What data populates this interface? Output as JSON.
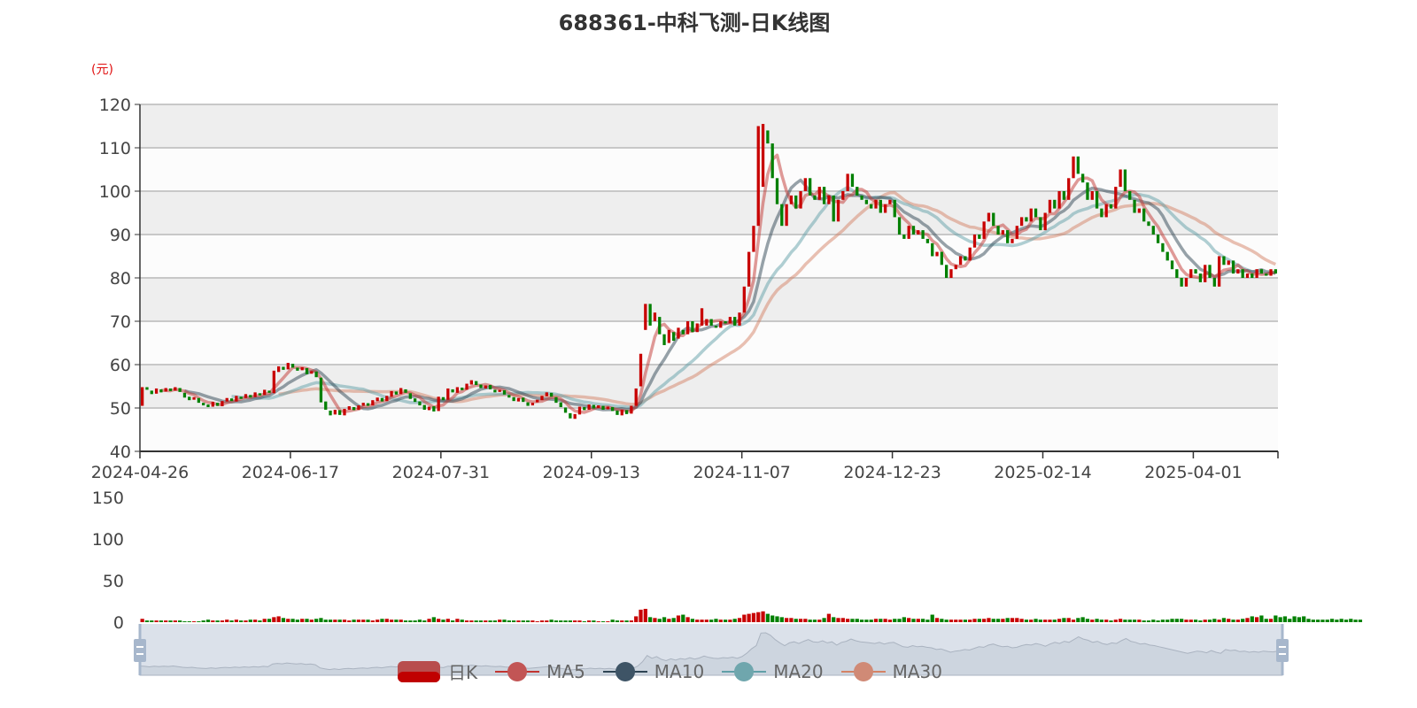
{
  "chart_data": {
    "type": "candlestick",
    "title": "688361-中科飞测-日K线图",
    "y_unit_label": "(元)",
    "ylim": [
      40,
      120
    ],
    "y_ticks": [
      40,
      50,
      60,
      70,
      80,
      90,
      100,
      110,
      120
    ],
    "volume_ylim": [
      0,
      150
    ],
    "volume_ticks": [
      0,
      50,
      100,
      150
    ],
    "x_tick_labels": [
      "2024-04-26",
      "2024-06-17",
      "2024-07-31",
      "2024-09-13",
      "2024-11-07",
      "2024-12-23",
      "2025-02-14",
      "2025-04-01"
    ],
    "x_tick_interval_days": 32,
    "grid": true,
    "legend": [
      "日K",
      "MA5",
      "MA10",
      "MA20",
      "MA30"
    ],
    "legend_placement": "bottom",
    "colors": {
      "up": "#c80000",
      "down": "#008000",
      "MA5": "#c23531",
      "MA10": "#2f4554",
      "MA20": "#61a0a8",
      "MA30": "#d48265",
      "band": "#eeeeee",
      "slider": "#dbe1ea"
    },
    "ohlc_note_fields": [
      "open",
      "close"
    ],
    "candles": [
      [
        50.5,
        54.8
      ],
      [
        54.8,
        54.2
      ],
      [
        54,
        53.2
      ],
      [
        53.3,
        54.5
      ],
      [
        54.3,
        53.6
      ],
      [
        53.8,
        54.6
      ],
      [
        54.5,
        53.9
      ],
      [
        54,
        54.8
      ],
      [
        54.6,
        53.7
      ],
      [
        53.5,
        52.4
      ],
      [
        52.6,
        51.8
      ],
      [
        51.9,
        52.5
      ],
      [
        52.3,
        51.2
      ],
      [
        51.2,
        50.6
      ],
      [
        50.8,
        50.2
      ],
      [
        50.3,
        51.4
      ],
      [
        51.2,
        50.5
      ],
      [
        50.4,
        51.6
      ],
      [
        51.5,
        52.3
      ],
      [
        52.2,
        51.6
      ],
      [
        51.5,
        52.8
      ],
      [
        52.6,
        52.1
      ],
      [
        52.3,
        53.2
      ],
      [
        53,
        52.4
      ],
      [
        52.5,
        53.6
      ],
      [
        53.4,
        52.9
      ],
      [
        53,
        54.2
      ],
      [
        54,
        53.5
      ],
      [
        53.4,
        58.6
      ],
      [
        58.3,
        59.6
      ],
      [
        59.5,
        58.8
      ],
      [
        58.9,
        60.4
      ],
      [
        60.2,
        59.3
      ],
      [
        59.3,
        58.6
      ],
      [
        58.7,
        59.4
      ],
      [
        59.2,
        57.8
      ],
      [
        57.9,
        58.5
      ],
      [
        58.4,
        57.1
      ],
      [
        57,
        51.3
      ],
      [
        51.5,
        49.6
      ],
      [
        49.4,
        48.3
      ],
      [
        48.5,
        49.6
      ],
      [
        49.5,
        48.4
      ],
      [
        48.3,
        49.8
      ],
      [
        49.6,
        50.4
      ],
      [
        50.2,
        49.5
      ],
      [
        49.6,
        50.6
      ],
      [
        50.5,
        51.2
      ],
      [
        51.1,
        50.5
      ],
      [
        50.6,
        51.8
      ],
      [
        51.6,
        52.4
      ],
      [
        52.3,
        51.5
      ],
      [
        51.6,
        52.8
      ],
      [
        52.6,
        53.9
      ],
      [
        53.8,
        53.1
      ],
      [
        53.2,
        54.6
      ],
      [
        54.3,
        53.5
      ],
      [
        53.4,
        52.1
      ],
      [
        52.2,
        51.4
      ],
      [
        51.5,
        50.6
      ],
      [
        50.7,
        49.6
      ],
      [
        49.5,
        50.3
      ],
      [
        50.4,
        49.2
      ],
      [
        49.3,
        52.6
      ],
      [
        52.5,
        51.8
      ],
      [
        51.9,
        54.5
      ],
      [
        54.3,
        53.6
      ],
      [
        53.5,
        54.8
      ],
      [
        54.7,
        54.1
      ],
      [
        54.2,
        55.6
      ],
      [
        55.4,
        56.4
      ],
      [
        56.2,
        55.3
      ],
      [
        55.4,
        54.6
      ],
      [
        54.5,
        55.2
      ],
      [
        55.3,
        54.3
      ],
      [
        54.2,
        53.6
      ],
      [
        53.7,
        54.2
      ],
      [
        54.1,
        53.1
      ],
      [
        53,
        52.4
      ],
      [
        52.5,
        51.6
      ],
      [
        51.5,
        52.3
      ],
      [
        52.4,
        51.4
      ],
      [
        51.3,
        50.5
      ],
      [
        50.6,
        51.2
      ],
      [
        51.3,
        51.9
      ],
      [
        51.8,
        52.8
      ],
      [
        52.7,
        53.6
      ],
      [
        53.5,
        52.6
      ],
      [
        52.5,
        51.2
      ],
      [
        51.3,
        50.2
      ],
      [
        50.1,
        48.9
      ],
      [
        48.8,
        47.6
      ],
      [
        47.5,
        48.6
      ],
      [
        48.5,
        50.3
      ],
      [
        50.2,
        49.5
      ],
      [
        49.6,
        50.8
      ],
      [
        50.7,
        49.9
      ],
      [
        50,
        50.6
      ],
      [
        50.5,
        49.6
      ],
      [
        49.7,
        50.3
      ],
      [
        50.2,
        49.3
      ],
      [
        49.4,
        48.4
      ],
      [
        48.3,
        49.6
      ],
      [
        49.5,
        48.6
      ],
      [
        48.7,
        50.5
      ],
      [
        50.5,
        54.5
      ],
      [
        55,
        62.5
      ],
      [
        68,
        74
      ],
      [
        74,
        69
      ],
      [
        70,
        72
      ],
      [
        71,
        67
      ],
      [
        67,
        64.5
      ],
      [
        65,
        68
      ],
      [
        67.5,
        65.5
      ],
      [
        66,
        68.5
      ],
      [
        68,
        67
      ],
      [
        67,
        70
      ],
      [
        70,
        67.5
      ],
      [
        67.5,
        69.5
      ],
      [
        69,
        73
      ],
      [
        69,
        70.5
      ],
      [
        70.5,
        69
      ],
      [
        69,
        68.5
      ],
      [
        68.5,
        70
      ],
      [
        70,
        69.5
      ],
      [
        69.5,
        71
      ],
      [
        71,
        69
      ],
      [
        69,
        72
      ],
      [
        72,
        78
      ],
      [
        78,
        86
      ],
      [
        86,
        92
      ],
      [
        92,
        115
      ],
      [
        101,
        115.5
      ],
      [
        114,
        111
      ],
      [
        111,
        103
      ],
      [
        103,
        97
      ],
      [
        97,
        92
      ],
      [
        92,
        97
      ],
      [
        97,
        99
      ],
      [
        99,
        96
      ],
      [
        96,
        100
      ],
      [
        100,
        103
      ],
      [
        103,
        99
      ],
      [
        99,
        98
      ],
      [
        98,
        101
      ],
      [
        101,
        97
      ],
      [
        97,
        99
      ],
      [
        99,
        93
      ],
      [
        93,
        98
      ],
      [
        98,
        100
      ],
      [
        100,
        104
      ],
      [
        104,
        101
      ],
      [
        101,
        99
      ],
      [
        99,
        98
      ],
      [
        98,
        97
      ],
      [
        97,
        96
      ],
      [
        96,
        98
      ],
      [
        98,
        95
      ],
      [
        95,
        97
      ],
      [
        97,
        98
      ],
      [
        98,
        94
      ],
      [
        94,
        90
      ],
      [
        90,
        89
      ],
      [
        89,
        92
      ],
      [
        92,
        90
      ],
      [
        90,
        91
      ],
      [
        91,
        89
      ],
      [
        89,
        88
      ],
      [
        88,
        85
      ],
      [
        85,
        86
      ],
      [
        86,
        83
      ],
      [
        83,
        80
      ],
      [
        80,
        82
      ],
      [
        82,
        83
      ],
      [
        83,
        85
      ],
      [
        85,
        84
      ],
      [
        84,
        87
      ],
      [
        87,
        90
      ],
      [
        90,
        89
      ],
      [
        89,
        93
      ],
      [
        93,
        95
      ],
      [
        95,
        92
      ],
      [
        92,
        90
      ],
      [
        90,
        91
      ],
      [
        91,
        88
      ],
      [
        88,
        89
      ],
      [
        89,
        92
      ],
      [
        92,
        94
      ],
      [
        94,
        93
      ],
      [
        93,
        96
      ],
      [
        96,
        94
      ],
      [
        94,
        91
      ],
      [
        91,
        95
      ],
      [
        95,
        98
      ],
      [
        98,
        96
      ],
      [
        96,
        100
      ],
      [
        100,
        98
      ],
      [
        98,
        103
      ],
      [
        103,
        108
      ],
      [
        108,
        104
      ],
      [
        104,
        102
      ],
      [
        102,
        98
      ],
      [
        98,
        100
      ],
      [
        100,
        96
      ],
      [
        96,
        94
      ],
      [
        94,
        97
      ],
      [
        97,
        96
      ],
      [
        96,
        101
      ],
      [
        101,
        105
      ],
      [
        105,
        100
      ],
      [
        100,
        98
      ],
      [
        98,
        95
      ],
      [
        95,
        96
      ],
      [
        96,
        93
      ],
      [
        93,
        92
      ],
      [
        92,
        90
      ],
      [
        90,
        88
      ],
      [
        88,
        86
      ],
      [
        86,
        84
      ],
      [
        84,
        82
      ],
      [
        82,
        80
      ],
      [
        80,
        78
      ],
      [
        78,
        80
      ],
      [
        80,
        82
      ],
      [
        82,
        81
      ],
      [
        81,
        79
      ],
      [
        79,
        83
      ],
      [
        83,
        80
      ],
      [
        80,
        78
      ],
      [
        78,
        85
      ],
      [
        85,
        83
      ],
      [
        83,
        84
      ],
      [
        84,
        81
      ],
      [
        81,
        82
      ],
      [
        82,
        80
      ],
      [
        80,
        81
      ],
      [
        81,
        80
      ],
      [
        80,
        82
      ],
      [
        82,
        81
      ],
      [
        81,
        80.5
      ],
      [
        80.5,
        82
      ],
      [
        82,
        81
      ]
    ],
    "volume": [
      4,
      2,
      2,
      2,
      2,
      2,
      2,
      2,
      2,
      1,
      1,
      1,
      1,
      2,
      3,
      2,
      2,
      2,
      3,
      2,
      3,
      2,
      2,
      3,
      3,
      2,
      4,
      4,
      6,
      7,
      5,
      4,
      4,
      3,
      4,
      4,
      3,
      4,
      5,
      3,
      3,
      3,
      3,
      3,
      2,
      3,
      3,
      3,
      3,
      2,
      3,
      4,
      4,
      3,
      3,
      3,
      2,
      2,
      2,
      3,
      2,
      4,
      6,
      4,
      3,
      4,
      2,
      4,
      3,
      2,
      2,
      2,
      2,
      2,
      2,
      2,
      3,
      3,
      2,
      2,
      2,
      2,
      2,
      2,
      1,
      2,
      2,
      3,
      2,
      2,
      2,
      2,
      2,
      2,
      1,
      2,
      2,
      1,
      1,
      1,
      3,
      2,
      2,
      2,
      2,
      7,
      15,
      16,
      6,
      5,
      4,
      6,
      4,
      5,
      8,
      9,
      6,
      4,
      3,
      3,
      3,
      3,
      4,
      3,
      3,
      3,
      4,
      5,
      9,
      10,
      11,
      12,
      13,
      10,
      8,
      7,
      6,
      5,
      5,
      4,
      4,
      4,
      3,
      3,
      3,
      5,
      10,
      6,
      5,
      5,
      4,
      4,
      4,
      3,
      3,
      3,
      4,
      4,
      4,
      3,
      4,
      4,
      6,
      5,
      4,
      4,
      4,
      3,
      9,
      5,
      4,
      3,
      3,
      3,
      3,
      3,
      3,
      4,
      4,
      4,
      5,
      4,
      4,
      4,
      5,
      5,
      5,
      4,
      3,
      3,
      4,
      3,
      3,
      3,
      3,
      4,
      5,
      5,
      3,
      5,
      6,
      4,
      3,
      4,
      3,
      3,
      2,
      3,
      4,
      3,
      3,
      3,
      3,
      2,
      2,
      3,
      2,
      3,
      3,
      4,
      4,
      4,
      3,
      3,
      3,
      2,
      3,
      3,
      4,
      3,
      5,
      4,
      3,
      3,
      4,
      5,
      7,
      6,
      8,
      4,
      4,
      8,
      6,
      7,
      4,
      7,
      6,
      7,
      4,
      3,
      3,
      3,
      3,
      4,
      3,
      4,
      3,
      4,
      3,
      3
    ]
  }
}
